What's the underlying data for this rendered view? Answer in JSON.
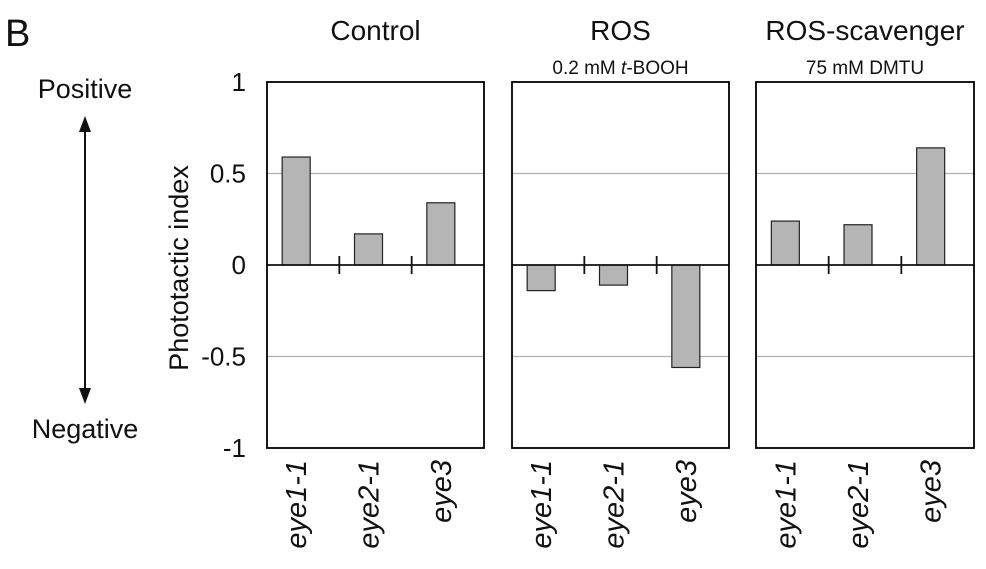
{
  "panel_label": "B",
  "side": {
    "positive": "Positive",
    "negative": "Negative"
  },
  "ylabel": "Phototactic index",
  "chart_data": [
    {
      "type": "bar",
      "title": "Control",
      "subtitle": "",
      "categories": [
        "eye1-1",
        "eye2-1",
        "eye3"
      ],
      "values": [
        0.59,
        0.17,
        0.34
      ],
      "ylim": [
        -1,
        1
      ],
      "yticks": [
        "1",
        "0.5",
        "0",
        "-0.5",
        "-1"
      ],
      "gridlines": [
        0.5,
        -0.5
      ]
    },
    {
      "type": "bar",
      "title": "ROS",
      "subtitle_pre": "0.2 mM ",
      "subtitle_italic": "t",
      "subtitle_post": "-BOOH",
      "categories": [
        "eye1-1",
        "eye2-1",
        "eye3"
      ],
      "values": [
        -0.14,
        -0.11,
        -0.56
      ],
      "ylim": [
        -1,
        1
      ],
      "gridlines": [
        0.5,
        -0.5
      ]
    },
    {
      "type": "bar",
      "title": "ROS-scavenger",
      "subtitle": "75 mM DMTU",
      "categories": [
        "eye1-1",
        "eye2-1",
        "eye3"
      ],
      "values": [
        0.24,
        0.22,
        0.64
      ],
      "ylim": [
        -1,
        1
      ],
      "gridlines": [
        0.5,
        -0.5
      ]
    }
  ],
  "colors": {
    "bar": "#b5b5b5",
    "bar_edge": "#222222",
    "grid": "#b0b0b0",
    "frame": "#000000"
  }
}
